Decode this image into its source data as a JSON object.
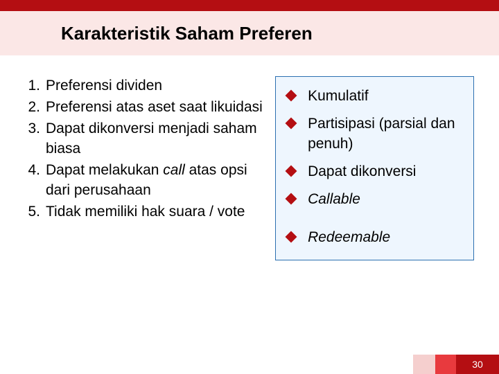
{
  "colors": {
    "top_bar": "#b40e12",
    "header_band": "#fbe7e6",
    "title_text": "#000000",
    "box_bg": "#eef6fe",
    "box_border": "#2b6fb0",
    "bullet_fill": "#b40e12",
    "footer_seg_a": "#f5cfce",
    "footer_seg_b": "#e83a3e",
    "footer_page_bg": "#b40e12",
    "body_text": "#000000"
  },
  "title": "Karakteristik Saham Preferen",
  "numbered": [
    {
      "n": "1.",
      "text": "Preferensi dividen",
      "italic": false
    },
    {
      "n": "2.",
      "text": "Preferensi atas aset saat likuidasi",
      "italic": false
    },
    {
      "n": "3.",
      "text": "Dapat dikonversi menjadi saham biasa",
      "italic": false
    },
    {
      "n": "4.",
      "text": "Dapat melakukan call atas opsi dari perusahaan",
      "italic": false,
      "italic_word": "call"
    },
    {
      "n": "5.",
      "text": "Tidak memiliki hak suara / vote",
      "italic": false
    }
  ],
  "bullets": [
    {
      "text": "Kumulatif",
      "italic": false
    },
    {
      "text": "Partisipasi (parsial dan penuh)",
      "italic": false
    },
    {
      "text": "Dapat dikonversi",
      "italic": false
    },
    {
      "text": "Callable",
      "italic": true
    },
    {
      "text": "Redeemable",
      "italic": true
    }
  ],
  "page_number": "30"
}
